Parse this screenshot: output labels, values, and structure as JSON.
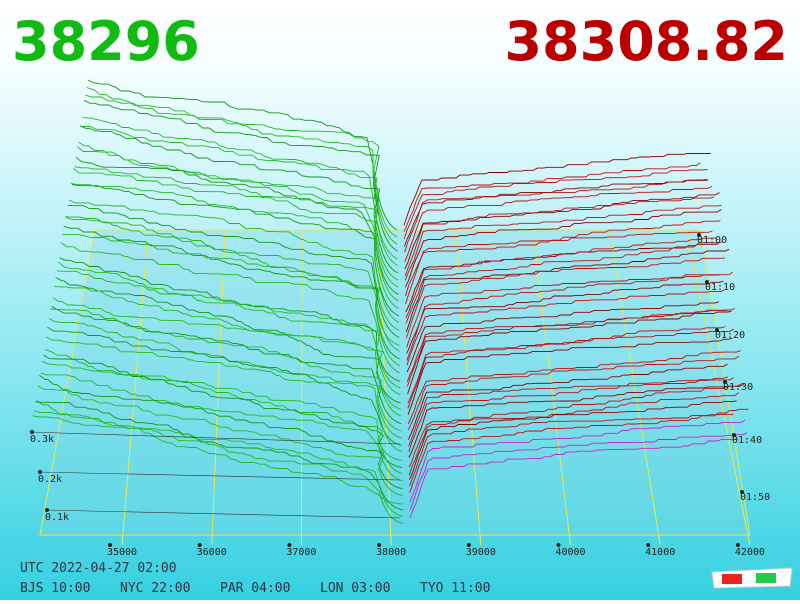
{
  "header": {
    "bid": "38296",
    "ask": "38308.82"
  },
  "price_axis": [
    35000,
    36000,
    37000,
    38000,
    39000,
    40000,
    41000,
    42000
  ],
  "depth_axis": [
    "0.3k",
    "0.2k",
    "0.1k"
  ],
  "time_axis": [
    "01:00",
    "01:10",
    "01:20",
    "01:30",
    "01:40",
    "01:50"
  ],
  "footer": {
    "utc": "UTC 2022-04-27 02:00",
    "cities": [
      "BJS 10:00",
      "NYC 22:00",
      "PAR 04:00",
      "LON 03:00",
      "TYO 11:00"
    ]
  }
}
